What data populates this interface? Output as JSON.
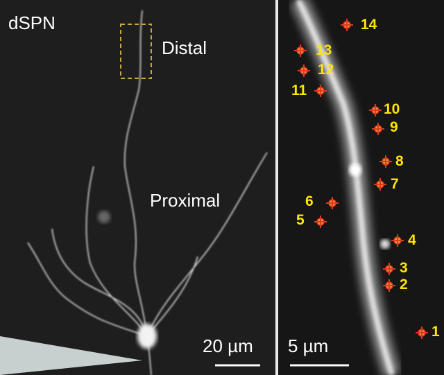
{
  "panels": {
    "left": {
      "cell_label": "dSPN",
      "distal_label": "Distal",
      "proximal_label": "Proximal",
      "scale_bar": "20 µm"
    },
    "right": {
      "scale_bar": "5 µm"
    }
  },
  "colors": {
    "marker": "#e03a1e",
    "number": "#ffe600",
    "roi_box": "#c9a640",
    "background": "#1b1b1b"
  },
  "spine_markers": [
    "1",
    "2",
    "3",
    "4",
    "5",
    "6",
    "7",
    "8",
    "9",
    "10",
    "11",
    "12",
    "13",
    "14"
  ]
}
